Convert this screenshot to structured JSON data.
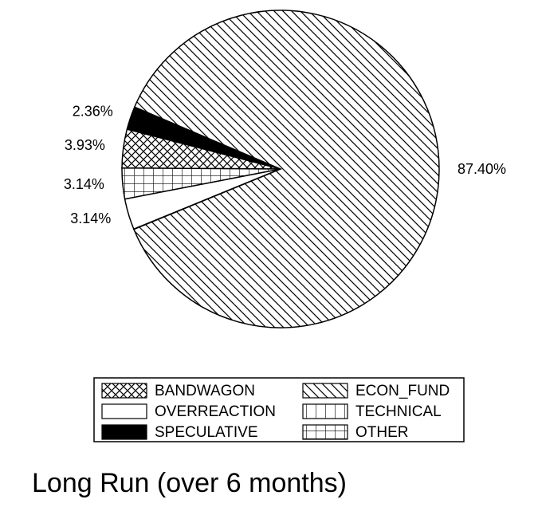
{
  "chart_data": {
    "type": "pie",
    "title": "Long Run (over 6 months)",
    "categories": [
      "SPECULATIVE",
      "BANDWAGON",
      "OTHER",
      "OVERREACTION",
      "TECHNICAL",
      "ECON_FUND"
    ],
    "values": [
      2.36,
      3.93,
      3.14,
      3.14,
      0.03,
      87.4
    ],
    "value_labels": [
      "2.36%",
      "3.93%",
      "3.14%",
      "3.14%",
      null,
      "87.40%"
    ],
    "patterns": [
      "solid",
      "crosshatch",
      "grid",
      "blank",
      "vertical",
      "diagonal"
    ]
  }
}
